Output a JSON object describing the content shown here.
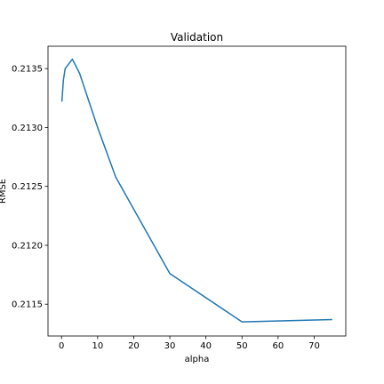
{
  "chart_data": {
    "type": "line",
    "title": "Validation",
    "xlabel": "alpha",
    "ylabel": "RMSE",
    "xlim": [
      -3.75,
      78.75
    ],
    "ylim": [
      0.21123,
      0.21369
    ],
    "xticks": [
      0,
      10,
      20,
      30,
      40,
      50,
      60,
      70
    ],
    "xtick_labels": [
      "0",
      "10",
      "20",
      "30",
      "40",
      "50",
      "60",
      "70"
    ],
    "yticks": [
      0.2115,
      0.212,
      0.2125,
      0.213,
      0.2135
    ],
    "ytick_labels": [
      "0.2115",
      "0.2120",
      "0.2125",
      "0.2130",
      "0.2135"
    ],
    "grid": false,
    "series": [
      {
        "color": "#1f77b4",
        "x": [
          0.1,
          0.5,
          1,
          3,
          5,
          10,
          15,
          30,
          50,
          75
        ],
        "y": [
          0.21322,
          0.2134,
          0.2135,
          0.21358,
          0.21346,
          0.213,
          0.21258,
          0.21176,
          0.21135,
          0.21137
        ]
      }
    ]
  }
}
